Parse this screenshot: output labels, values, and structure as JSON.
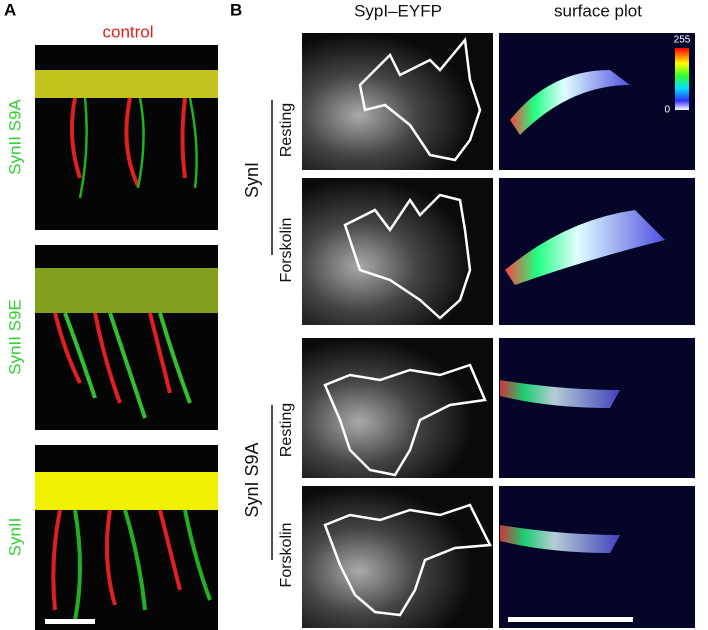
{
  "panel_a": {
    "label": "A",
    "title": "control",
    "rows": [
      "SynII S9A",
      "SynII S9E",
      "SynII"
    ]
  },
  "panel_b": {
    "label": "B",
    "columns": [
      "SypI–EYFP",
      "surface plot"
    ],
    "groups": [
      {
        "name": "SynI",
        "conditions": [
          "Resting",
          "Forskolin"
        ]
      },
      {
        "name": "SynI S9A",
        "conditions": [
          "Resting",
          "Forskolin"
        ]
      }
    ],
    "colorbar": {
      "max": 255,
      "min": 0
    }
  }
}
